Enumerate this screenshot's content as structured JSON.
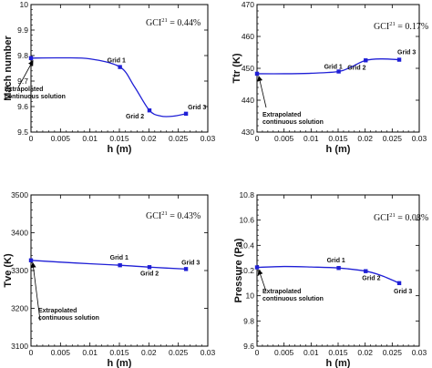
{
  "chart_data": [
    {
      "type": "line",
      "xlabel": "h (m)",
      "ylabel": "Mach number",
      "xlim": [
        0,
        0.03
      ],
      "ylim": [
        9.5,
        10
      ],
      "xticks": [
        "0",
        "0.005",
        "0.01",
        "0.015",
        "0.02",
        "0.025",
        "0.03"
      ],
      "yticks": [
        "9.5",
        "9.6",
        "9.7",
        "9.8",
        "9.9",
        "10"
      ],
      "annotation": {
        "prefix": "GCI",
        "sup": "21",
        "value": " = 0.44%"
      },
      "extrapolated_label": [
        "Extrapolated",
        "continuous solution"
      ],
      "points": [
        {
          "name": "Extrapolated",
          "x": 0.0,
          "y": 9.79,
          "label": ""
        },
        {
          "name": "Grid 1",
          "x": 0.0151,
          "y": 9.755,
          "label": "Grid 1"
        },
        {
          "name": "Grid 2",
          "x": 0.0201,
          "y": 9.585,
          "label": "Grid 2"
        },
        {
          "name": "Grid 3",
          "x": 0.0263,
          "y": 9.572,
          "label": "Grid 3"
        }
      ],
      "curve": [
        [
          0,
          9.79
        ],
        [
          0.005,
          9.791
        ],
        [
          0.01,
          9.787
        ],
        [
          0.0151,
          9.755
        ],
        [
          0.0175,
          9.68
        ],
        [
          0.0201,
          9.585
        ],
        [
          0.022,
          9.563
        ],
        [
          0.024,
          9.562
        ],
        [
          0.0263,
          9.572
        ]
      ]
    },
    {
      "type": "line",
      "xlabel": "h (m)",
      "ylabel": "Ttr (K)",
      "xlim": [
        0,
        0.03
      ],
      "ylim": [
        430,
        470
      ],
      "xticks": [
        "0",
        "0.005",
        "0.01",
        "0.015",
        "0.02",
        "0.025",
        "0.03"
      ],
      "yticks": [
        "430",
        "440",
        "450",
        "460",
        "470"
      ],
      "annotation": {
        "prefix": "GCI",
        "sup": "21",
        "value": " = 0.17%"
      },
      "extrapolated_label": [
        "Extrapolated",
        "continuous solution"
      ],
      "points": [
        {
          "name": "Extrapolated",
          "x": 0.0,
          "y": 448.3,
          "label": ""
        },
        {
          "name": "Grid 1",
          "x": 0.0151,
          "y": 449.0,
          "label": "Grid 1"
        },
        {
          "name": "Grid 2",
          "x": 0.0201,
          "y": 452.5,
          "label": "Grid 2"
        },
        {
          "name": "Grid 3",
          "x": 0.0263,
          "y": 452.7,
          "label": "Grid 3"
        }
      ],
      "curve": [
        [
          0,
          448.3
        ],
        [
          0.005,
          448.3
        ],
        [
          0.01,
          448.45
        ],
        [
          0.0151,
          449.0
        ],
        [
          0.0175,
          450.5
        ],
        [
          0.0201,
          452.5
        ],
        [
          0.023,
          452.95
        ],
        [
          0.0263,
          452.7
        ]
      ]
    },
    {
      "type": "line",
      "xlabel": "h (m)",
      "ylabel": "Tve (K)",
      "xlim": [
        0,
        0.03
      ],
      "ylim": [
        3100,
        3500
      ],
      "xticks": [
        "0",
        "0.005",
        "0.01",
        "0.015",
        "0.02",
        "0.025",
        "0.03"
      ],
      "yticks": [
        "3100",
        "3200",
        "3300",
        "3400",
        "3500"
      ],
      "annotation": {
        "prefix": "GCI",
        "sup": "21",
        "value": " = 0.43%"
      },
      "extrapolated_label": [
        "Extrapolated",
        "continuous solution"
      ],
      "points": [
        {
          "name": "Extrapolated",
          "x": 0.0,
          "y": 3327,
          "label": ""
        },
        {
          "name": "Grid 1",
          "x": 0.0151,
          "y": 3314,
          "label": "Grid 1"
        },
        {
          "name": "Grid 2",
          "x": 0.0201,
          "y": 3309,
          "label": "Grid 2"
        },
        {
          "name": "Grid 3",
          "x": 0.0263,
          "y": 3304,
          "label": "Grid 3"
        }
      ],
      "curve": [
        [
          0,
          3327
        ],
        [
          0.0075,
          3320
        ],
        [
          0.0151,
          3314
        ],
        [
          0.0201,
          3309
        ],
        [
          0.0263,
          3304
        ]
      ]
    },
    {
      "type": "line",
      "xlabel": "h (m)",
      "ylabel": "Pressure (Pa)",
      "xlim": [
        0,
        0.03
      ],
      "ylim": [
        9.6,
        10.8
      ],
      "xticks": [
        "0",
        "0.005",
        "0.01",
        "0.015",
        "0.02",
        "0.025",
        "0.03"
      ],
      "yticks": [
        "9.6",
        "9.8",
        "10",
        "10.2",
        "10.4",
        "10.6",
        "10.8"
      ],
      "annotation": {
        "prefix": "GCI",
        "sup": "21",
        "value": " = 0.08%"
      },
      "extrapolated_label": [
        "Extrapolated",
        "continuous solution"
      ],
      "points": [
        {
          "name": "Extrapolated",
          "x": 0.0,
          "y": 10.225,
          "label": ""
        },
        {
          "name": "Grid 1",
          "x": 0.0151,
          "y": 10.22,
          "label": "Grid 1"
        },
        {
          "name": "Grid 2",
          "x": 0.0201,
          "y": 10.195,
          "label": "Grid 2"
        },
        {
          "name": "Grid 3",
          "x": 0.0263,
          "y": 10.1,
          "label": "Grid 3"
        }
      ],
      "curve": [
        [
          0,
          10.225
        ],
        [
          0.005,
          10.232
        ],
        [
          0.01,
          10.228
        ],
        [
          0.0151,
          10.22
        ],
        [
          0.0201,
          10.195
        ],
        [
          0.023,
          10.16
        ],
        [
          0.0263,
          10.1
        ]
      ]
    }
  ],
  "colors": {
    "series": "#1f1fd6",
    "axis": "#000000"
  }
}
